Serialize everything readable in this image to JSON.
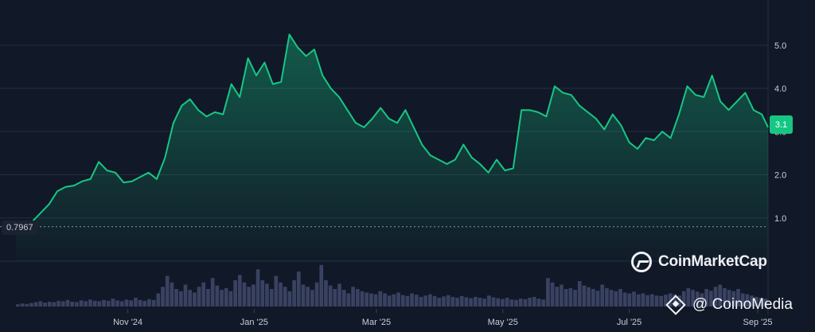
{
  "watermark_text": "CoinMarketCap",
  "credit_text": "@ CoinoMedia",
  "chart_data": {
    "type": "area",
    "title": "",
    "y_ticks": [
      "1.0",
      "2.0",
      "3.0",
      "4.0",
      "5.0"
    ],
    "y_tick_values": [
      1.0,
      2.0,
      3.0,
      4.0,
      5.0
    ],
    "ylim": [
      0.0,
      5.9
    ],
    "x_ticks": [
      "Nov '24",
      "Jan '25",
      "Mar '25",
      "May '25",
      "Jul '25",
      "Sep '25"
    ],
    "x_tick_dates": [
      "2024-11-01",
      "2025-01-01",
      "2025-03-01",
      "2025-05-01",
      "2025-07-01",
      "2025-09-01"
    ],
    "xlim": [
      "2024-09-08",
      "2025-09-06"
    ],
    "baseline": {
      "label": "0.7967",
      "value": 0.7967
    },
    "current_price": {
      "label": "3.1",
      "value": 3.1
    },
    "grid": true,
    "colors": {
      "line": "#16c784",
      "background": "#111827",
      "volume": "#3a4262",
      "tag": "#16c784"
    },
    "series": [
      {
        "points": [
          [
            "2024-09-08",
            0.8
          ],
          [
            "2024-09-12",
            0.82
          ],
          [
            "2024-09-16",
            0.92
          ],
          [
            "2024-09-20",
            1.12
          ],
          [
            "2024-09-24",
            1.32
          ],
          [
            "2024-09-28",
            1.62
          ],
          [
            "2024-10-02",
            1.72
          ],
          [
            "2024-10-06",
            1.75
          ],
          [
            "2024-10-10",
            1.85
          ],
          [
            "2024-10-14",
            1.9
          ],
          [
            "2024-10-18",
            2.3
          ],
          [
            "2024-10-22",
            2.1
          ],
          [
            "2024-10-26",
            2.05
          ],
          [
            "2024-10-30",
            1.82
          ],
          [
            "2024-11-03",
            1.85
          ],
          [
            "2024-11-07",
            1.95
          ],
          [
            "2024-11-11",
            2.05
          ],
          [
            "2024-11-15",
            1.9
          ],
          [
            "2024-11-19",
            2.4
          ],
          [
            "2024-11-23",
            3.2
          ],
          [
            "2024-11-27",
            3.6
          ],
          [
            "2024-12-01",
            3.75
          ],
          [
            "2024-12-05",
            3.5
          ],
          [
            "2024-12-09",
            3.35
          ],
          [
            "2024-12-13",
            3.45
          ],
          [
            "2024-12-17",
            3.4
          ],
          [
            "2024-12-21",
            4.1
          ],
          [
            "2024-12-25",
            3.8
          ],
          [
            "2024-12-29",
            4.7
          ],
          [
            "2025-01-02",
            4.3
          ],
          [
            "2025-01-06",
            4.6
          ],
          [
            "2025-01-10",
            4.1
          ],
          [
            "2025-01-14",
            4.15
          ],
          [
            "2025-01-18",
            5.25
          ],
          [
            "2025-01-22",
            4.95
          ],
          [
            "2025-01-26",
            4.75
          ],
          [
            "2025-01-30",
            4.9
          ],
          [
            "2025-02-03",
            4.3
          ],
          [
            "2025-02-07",
            4.0
          ],
          [
            "2025-02-11",
            3.8
          ],
          [
            "2025-02-15",
            3.5
          ],
          [
            "2025-02-19",
            3.2
          ],
          [
            "2025-02-23",
            3.1
          ],
          [
            "2025-02-27",
            3.3
          ],
          [
            "2025-03-03",
            3.55
          ],
          [
            "2025-03-07",
            3.3
          ],
          [
            "2025-03-11",
            3.2
          ],
          [
            "2025-03-15",
            3.5
          ],
          [
            "2025-03-19",
            3.1
          ],
          [
            "2025-03-23",
            2.7
          ],
          [
            "2025-03-27",
            2.45
          ],
          [
            "2025-03-31",
            2.35
          ],
          [
            "2025-04-04",
            2.25
          ],
          [
            "2025-04-08",
            2.35
          ],
          [
            "2025-04-12",
            2.7
          ],
          [
            "2025-04-16",
            2.4
          ],
          [
            "2025-04-20",
            2.25
          ],
          [
            "2025-04-24",
            2.05
          ],
          [
            "2025-04-28",
            2.35
          ],
          [
            "2025-05-02",
            2.1
          ],
          [
            "2025-05-06",
            2.15
          ],
          [
            "2025-05-10",
            3.5
          ],
          [
            "2025-05-14",
            3.5
          ],
          [
            "2025-05-18",
            3.45
          ],
          [
            "2025-05-22",
            3.35
          ],
          [
            "2025-05-26",
            4.05
          ],
          [
            "2025-05-30",
            3.9
          ],
          [
            "2025-06-03",
            3.85
          ],
          [
            "2025-06-07",
            3.6
          ],
          [
            "2025-06-11",
            3.45
          ],
          [
            "2025-06-15",
            3.3
          ],
          [
            "2025-06-19",
            3.05
          ],
          [
            "2025-06-23",
            3.4
          ],
          [
            "2025-06-27",
            3.15
          ],
          [
            "2025-07-01",
            2.75
          ],
          [
            "2025-07-05",
            2.6
          ],
          [
            "2025-07-09",
            2.85
          ],
          [
            "2025-07-13",
            2.8
          ],
          [
            "2025-07-17",
            3.0
          ],
          [
            "2025-07-21",
            2.85
          ],
          [
            "2025-07-25",
            3.4
          ],
          [
            "2025-07-29",
            4.05
          ],
          [
            "2025-08-02",
            3.85
          ],
          [
            "2025-08-06",
            3.8
          ],
          [
            "2025-08-10",
            4.3
          ],
          [
            "2025-08-14",
            3.7
          ],
          [
            "2025-08-18",
            3.5
          ],
          [
            "2025-08-22",
            3.7
          ],
          [
            "2025-08-26",
            3.9
          ],
          [
            "2025-08-30",
            3.5
          ],
          [
            "2025-09-03",
            3.4
          ],
          [
            "2025-09-06",
            3.1
          ]
        ]
      }
    ],
    "volume": [
      0.05,
      0.07,
      0.06,
      0.08,
      0.1,
      0.12,
      0.09,
      0.11,
      0.1,
      0.13,
      0.12,
      0.15,
      0.11,
      0.1,
      0.14,
      0.12,
      0.16,
      0.13,
      0.12,
      0.15,
      0.13,
      0.18,
      0.14,
      0.12,
      0.16,
      0.14,
      0.2,
      0.15,
      0.13,
      0.17,
      0.15,
      0.3,
      0.45,
      0.7,
      0.55,
      0.4,
      0.35,
      0.5,
      0.38,
      0.32,
      0.45,
      0.55,
      0.4,
      0.65,
      0.48,
      0.38,
      0.42,
      0.35,
      0.6,
      0.72,
      0.55,
      0.45,
      0.5,
      0.85,
      0.6,
      0.52,
      0.4,
      0.7,
      0.55,
      0.45,
      0.35,
      0.6,
      0.8,
      0.5,
      0.45,
      0.38,
      0.55,
      0.95,
      0.6,
      0.48,
      0.4,
      0.52,
      0.38,
      0.3,
      0.45,
      0.4,
      0.35,
      0.32,
      0.3,
      0.28,
      0.35,
      0.3,
      0.25,
      0.28,
      0.32,
      0.26,
      0.24,
      0.3,
      0.27,
      0.22,
      0.25,
      0.28,
      0.24,
      0.2,
      0.23,
      0.26,
      0.22,
      0.2,
      0.24,
      0.21,
      0.19,
      0.22,
      0.2,
      0.18,
      0.25,
      0.21,
      0.19,
      0.17,
      0.2,
      0.16,
      0.15,
      0.18,
      0.17,
      0.2,
      0.22,
      0.18,
      0.16,
      0.65,
      0.55,
      0.45,
      0.5,
      0.4,
      0.42,
      0.38,
      0.58,
      0.48,
      0.44,
      0.4,
      0.36,
      0.5,
      0.42,
      0.38,
      0.35,
      0.4,
      0.32,
      0.3,
      0.34,
      0.28,
      0.3,
      0.26,
      0.28,
      0.25,
      0.24,
      0.27,
      0.3,
      0.28,
      0.25,
      0.35,
      0.42,
      0.38,
      0.34,
      0.3,
      0.4,
      0.36,
      0.45,
      0.5,
      0.42,
      0.38,
      0.35,
      0.4,
      0.3,
      0.28,
      0.25,
      0.22,
      0.2,
      0.18
    ]
  }
}
